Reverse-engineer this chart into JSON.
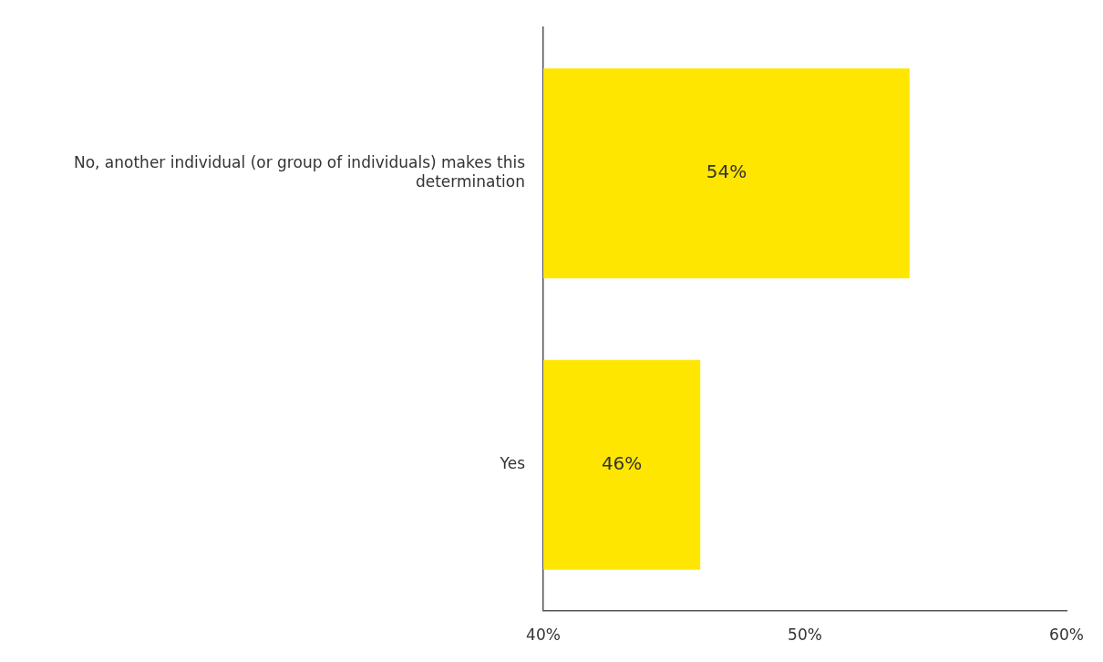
{
  "chart_data": {
    "type": "bar",
    "orientation": "horizontal",
    "categories": [
      "No, another individual (or group of individuals) makes this determination",
      "Yes"
    ],
    "values": [
      54,
      46
    ],
    "value_labels": [
      "54%",
      "46%"
    ],
    "color": "#ffe600",
    "xlim": [
      40,
      60
    ],
    "xticks": [
      {
        "value": 40,
        "label": "40%"
      },
      {
        "value": 50,
        "label": "50%"
      },
      {
        "value": 60,
        "label": "60%"
      }
    ],
    "grid": false,
    "legend": false
  }
}
